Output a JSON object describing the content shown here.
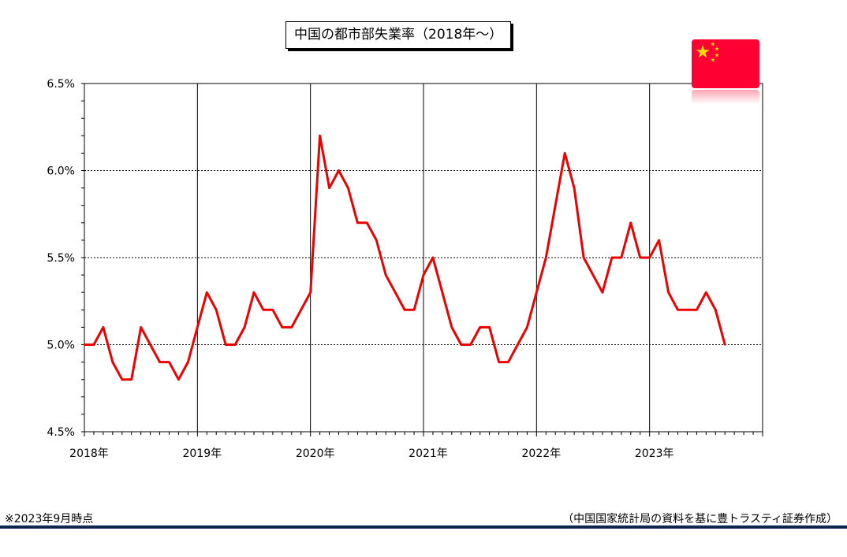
{
  "colors": {
    "series": "#ee0000",
    "flag_red": "#ff0033",
    "flag_star": "#ffd700",
    "footer_rule": "#0f2350"
  },
  "icons": {
    "flag": "china-flag-icon"
  },
  "footnote_left": "※2023年9月時点",
  "footnote_right": "（中国国家統計局の資料を基に豊トラスティ証券作成）",
  "chart_data": {
    "type": "line",
    "title": "中国の都市部失業率（2018年～）",
    "xlabel": "",
    "ylabel": "",
    "ylim": [
      4.5,
      6.5
    ],
    "yticks": [
      4.5,
      5.0,
      5.5,
      6.0,
      6.5
    ],
    "ytick_labels": [
      "4.5%",
      "5.0%",
      "5.5%",
      "6.0%",
      "6.5%"
    ],
    "xtick_labels": [
      "2018年",
      "2019年",
      "2020年",
      "2021年",
      "2022年",
      "2023年"
    ],
    "grid": "horizontal dotted at 5.0/5.5/6.0, vertical solid at each year",
    "series": [
      {
        "x": [
          "2018-01",
          "2018-02",
          "2018-03",
          "2018-04",
          "2018-05",
          "2018-06",
          "2018-07",
          "2018-08",
          "2018-09",
          "2018-10",
          "2018-11",
          "2018-12",
          "2019-01",
          "2019-02",
          "2019-03",
          "2019-04",
          "2019-05",
          "2019-06",
          "2019-07",
          "2019-08",
          "2019-09",
          "2019-10",
          "2019-11",
          "2019-12",
          "2020-01",
          "2020-02",
          "2020-03",
          "2020-04",
          "2020-05",
          "2020-06",
          "2020-07",
          "2020-08",
          "2020-09",
          "2020-10",
          "2020-11",
          "2020-12",
          "2021-01",
          "2021-02",
          "2021-03",
          "2021-04",
          "2021-05",
          "2021-06",
          "2021-07",
          "2021-08",
          "2021-09",
          "2021-10",
          "2021-11",
          "2021-12",
          "2022-01",
          "2022-02",
          "2022-03",
          "2022-04",
          "2022-05",
          "2022-06",
          "2022-07",
          "2022-08",
          "2022-09",
          "2022-10",
          "2022-11",
          "2022-12",
          "2023-01",
          "2023-02",
          "2023-03",
          "2023-04",
          "2023-05",
          "2023-06",
          "2023-07",
          "2023-08",
          "2023-09"
        ],
        "values": [
          5.0,
          5.0,
          5.1,
          4.9,
          4.8,
          4.8,
          5.1,
          5.0,
          4.9,
          4.9,
          4.8,
          4.9,
          5.1,
          5.3,
          5.2,
          5.0,
          5.0,
          5.1,
          5.3,
          5.2,
          5.2,
          5.1,
          5.1,
          5.2,
          5.3,
          6.2,
          5.9,
          6.0,
          5.9,
          5.7,
          5.7,
          5.6,
          5.4,
          5.3,
          5.2,
          5.2,
          5.4,
          5.5,
          5.3,
          5.1,
          5.0,
          5.0,
          5.1,
          5.1,
          4.9,
          4.9,
          5.0,
          5.1,
          5.3,
          5.5,
          5.8,
          6.1,
          5.9,
          5.5,
          5.4,
          5.3,
          5.5,
          5.5,
          5.7,
          5.5,
          5.5,
          5.6,
          5.3,
          5.2,
          5.2,
          5.2,
          5.3,
          5.2,
          5.0
        ]
      }
    ]
  }
}
